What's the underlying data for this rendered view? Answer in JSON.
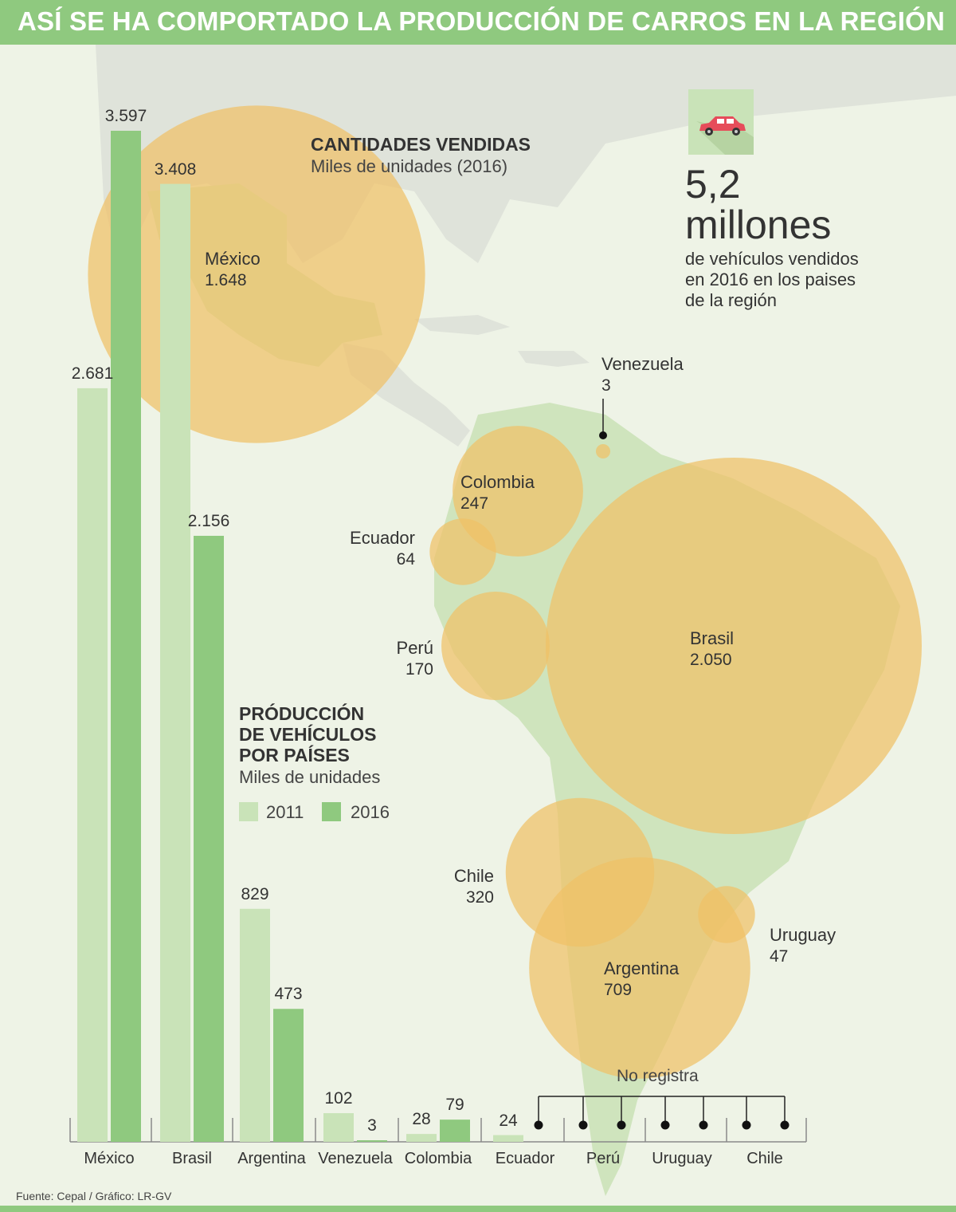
{
  "header": {
    "title": "ASÍ SE HA COMPORTADO LA PRODUCCIÓN DE CARROS EN LA REGIÓN"
  },
  "colors": {
    "bar_2011": "#c9e3b8",
    "bar_2016": "#8fc97f",
    "bubble": "#f0c067",
    "header": "#8fc97f"
  },
  "sales_section": {
    "title": "CANTIDADES VENDIDAS",
    "subtitle": "Miles de unidades (2016)"
  },
  "production_section": {
    "title_lines": [
      "PRÓDUCCIÓN",
      "DE VEHÍCULOS",
      "POR PAÍSES"
    ],
    "subtitle": "Miles de unidades",
    "legend": [
      "2011",
      "2016"
    ]
  },
  "summary": {
    "number": "5,2",
    "unit": "millones",
    "description": "de vehículos vendidos en 2016 en los paises de la región",
    "icon": "car-icon"
  },
  "no_data_label": "No registra",
  "source": "Fuente: Cepal / Gráfico: LR-GV",
  "chart_data": [
    {
      "type": "bar",
      "categories": [
        "México",
        "Brasil",
        "Argentina",
        "Venezuela",
        "Colombia",
        "Ecuador",
        "Perú",
        "Uruguay",
        "Chile"
      ],
      "series": [
        {
          "name": "2011",
          "values": [
            2681,
            3408,
            829,
            102,
            28,
            24,
            null,
            null,
            null
          ],
          "labels": [
            "2.681",
            "3.408",
            "829",
            "102",
            "28",
            "24",
            "",
            "",
            ""
          ]
        },
        {
          "name": "2016",
          "values": [
            3597,
            2156,
            473,
            3,
            79,
            null,
            null,
            null,
            null
          ],
          "labels": [
            "3.597",
            "2.156",
            "473",
            "3",
            "79",
            "",
            "",
            "",
            ""
          ]
        }
      ],
      "title": "PRÓDUCCIÓN DE VEHÍCULOS POR PAÍSES",
      "ylabel": "Miles de unidades"
    },
    {
      "type": "bubble",
      "title": "CANTIDADES VENDIDAS",
      "unit": "Miles de unidades (2016)",
      "points": [
        {
          "name": "México",
          "value": 1648,
          "label": "1.648"
        },
        {
          "name": "Venezuela",
          "value": 3,
          "label": "3"
        },
        {
          "name": "Colombia",
          "value": 247,
          "label": "247"
        },
        {
          "name": "Ecuador",
          "value": 64,
          "label": "64"
        },
        {
          "name": "Perú",
          "value": 170,
          "label": "170"
        },
        {
          "name": "Brasil",
          "value": 2050,
          "label": "2.050"
        },
        {
          "name": "Chile",
          "value": 320,
          "label": "320"
        },
        {
          "name": "Uruguay",
          "value": 47,
          "label": "47"
        },
        {
          "name": "Argentina",
          "value": 709,
          "label": "709"
        }
      ]
    }
  ]
}
